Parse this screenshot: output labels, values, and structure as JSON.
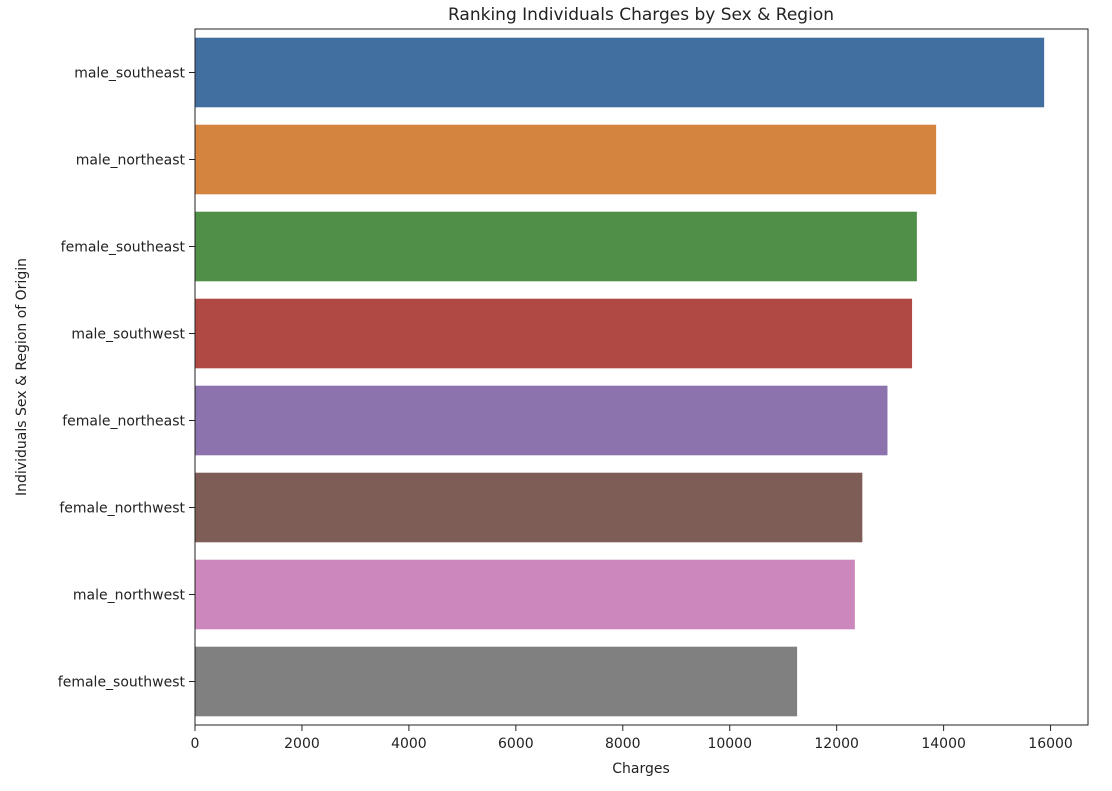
{
  "chart_data": {
    "type": "bar",
    "orientation": "horizontal",
    "title": "Ranking Individuals Charges by Sex & Region",
    "xlabel": "Charges",
    "ylabel": "Individuals Sex & Region of Origin",
    "xlim": [
      0,
      16700
    ],
    "xticks": [
      0,
      2000,
      4000,
      6000,
      8000,
      10000,
      12000,
      14000,
      16000
    ],
    "grid": false,
    "legend": "none",
    "categories": [
      "male_southeast",
      "male_northeast",
      "female_southeast",
      "male_southwest",
      "female_northeast",
      "female_northwest",
      "male_northwest",
      "female_southwest"
    ],
    "values": [
      15880,
      13860,
      13500,
      13410,
      12950,
      12480,
      12340,
      11260
    ],
    "colors": [
      "#4170a0",
      "#d4843f",
      "#4f8f47",
      "#b04843",
      "#8c73ad",
      "#7d5d55",
      "#cc88bc",
      "#808080"
    ]
  }
}
